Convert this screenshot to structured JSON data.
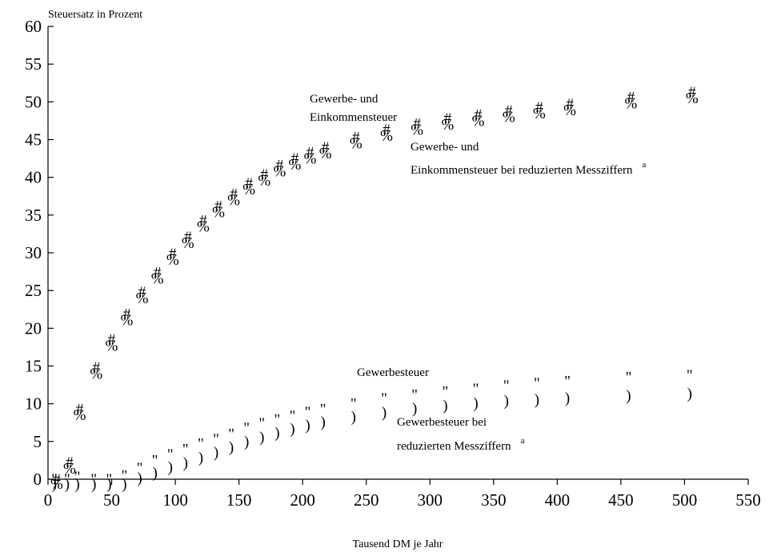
{
  "chart_data": {
    "type": "scatter",
    "ylabel": "Steuersatz in Prozent",
    "xlabel": "Tausend DM je Jahr",
    "xlim": [
      0,
      550
    ],
    "ylim": [
      0,
      60
    ],
    "xticks": [
      0,
      50,
      100,
      150,
      200,
      250,
      300,
      350,
      400,
      450,
      500,
      550
    ],
    "yticks": [
      0,
      5,
      10,
      15,
      20,
      25,
      30,
      35,
      40,
      45,
      50,
      55,
      60
    ],
    "grid": false,
    "legend": "none",
    "annotations": [
      {
        "text": "Gewerbe- und",
        "sup": ""
      },
      {
        "text": "Einkommensteuer",
        "sup": ""
      },
      {
        "text": "Gewerbe- und",
        "sup": ""
      },
      {
        "text": "Einkommensteuer bei reduzierten Messziffern",
        "sup": "a"
      },
      {
        "text": "Gewerbesteuer",
        "sup": ""
      },
      {
        "text": "Gewerbesteuer bei",
        "sup": ""
      },
      {
        "text": "reduzierten Messziffern",
        "sup": "a"
      }
    ],
    "series": [
      {
        "marker": "#",
        "x": [
          5,
          15,
          23,
          36,
          48,
          60,
          72,
          84,
          96,
          108,
          120,
          132,
          144,
          156,
          168,
          180,
          192,
          204,
          216,
          240,
          264,
          288,
          312,
          336,
          360,
          384,
          408,
          456,
          504
        ],
        "y": [
          0,
          2.2,
          9.3,
          14.8,
          18.5,
          21.9,
          24.8,
          27.4,
          29.9,
          32.1,
          34.3,
          36.2,
          37.8,
          39.2,
          40.4,
          41.6,
          42.5,
          43.3,
          44.0,
          45.3,
          46.3,
          47.1,
          47.8,
          48.3,
          48.8,
          49.3,
          49.7,
          50.6,
          51.3
        ]
      },
      {
        "marker": "%",
        "x": [
          5,
          15,
          23,
          36,
          48,
          60,
          72,
          84,
          96,
          108,
          120,
          132,
          144,
          156,
          168,
          180,
          192,
          204,
          216,
          240,
          264,
          288,
          312,
          336,
          360,
          384,
          408,
          456,
          504
        ],
        "y": [
          0,
          2.0,
          9.1,
          14.6,
          18.3,
          21.7,
          24.6,
          27.2,
          29.7,
          31.9,
          34.1,
          36.0,
          37.6,
          39.0,
          40.2,
          41.4,
          42.3,
          43.1,
          43.8,
          45.1,
          46.1,
          46.9,
          47.6,
          48.1,
          48.6,
          49.1,
          49.5,
          50.4,
          51.1
        ]
      },
      {
        "marker": "\"",
        "x": [
          5,
          15,
          23,
          36,
          48,
          60,
          72,
          84,
          96,
          108,
          120,
          132,
          144,
          156,
          168,
          180,
          192,
          204,
          216,
          240,
          264,
          288,
          312,
          336,
          360,
          384,
          408,
          456,
          504
        ],
        "y": [
          0,
          0,
          0.3,
          0,
          0,
          0.5,
          1.5,
          2.5,
          3.3,
          4.0,
          4.7,
          5.3,
          6.0,
          6.8,
          7.4,
          7.9,
          8.4,
          8.9,
          9.3,
          10.0,
          10.7,
          11.2,
          11.6,
          12.0,
          12.4,
          12.7,
          13.0,
          13.5,
          13.8
        ]
      },
      {
        "marker": ")",
        "x": [
          5,
          15,
          23,
          36,
          48,
          60,
          72,
          84,
          96,
          108,
          120,
          132,
          144,
          156,
          168,
          180,
          192,
          204,
          216,
          240,
          264,
          288,
          312,
          336,
          360,
          384,
          408,
          456,
          504
        ],
        "y": [
          0,
          0,
          0,
          0,
          0,
          0,
          0.8,
          1.5,
          2.2,
          2.8,
          3.5,
          4.2,
          4.9,
          5.6,
          6.2,
          6.8,
          7.3,
          7.8,
          8.2,
          8.9,
          9.5,
          10.0,
          10.4,
          10.7,
          11.0,
          11.2,
          11.4,
          11.7,
          12.0
        ]
      }
    ]
  }
}
